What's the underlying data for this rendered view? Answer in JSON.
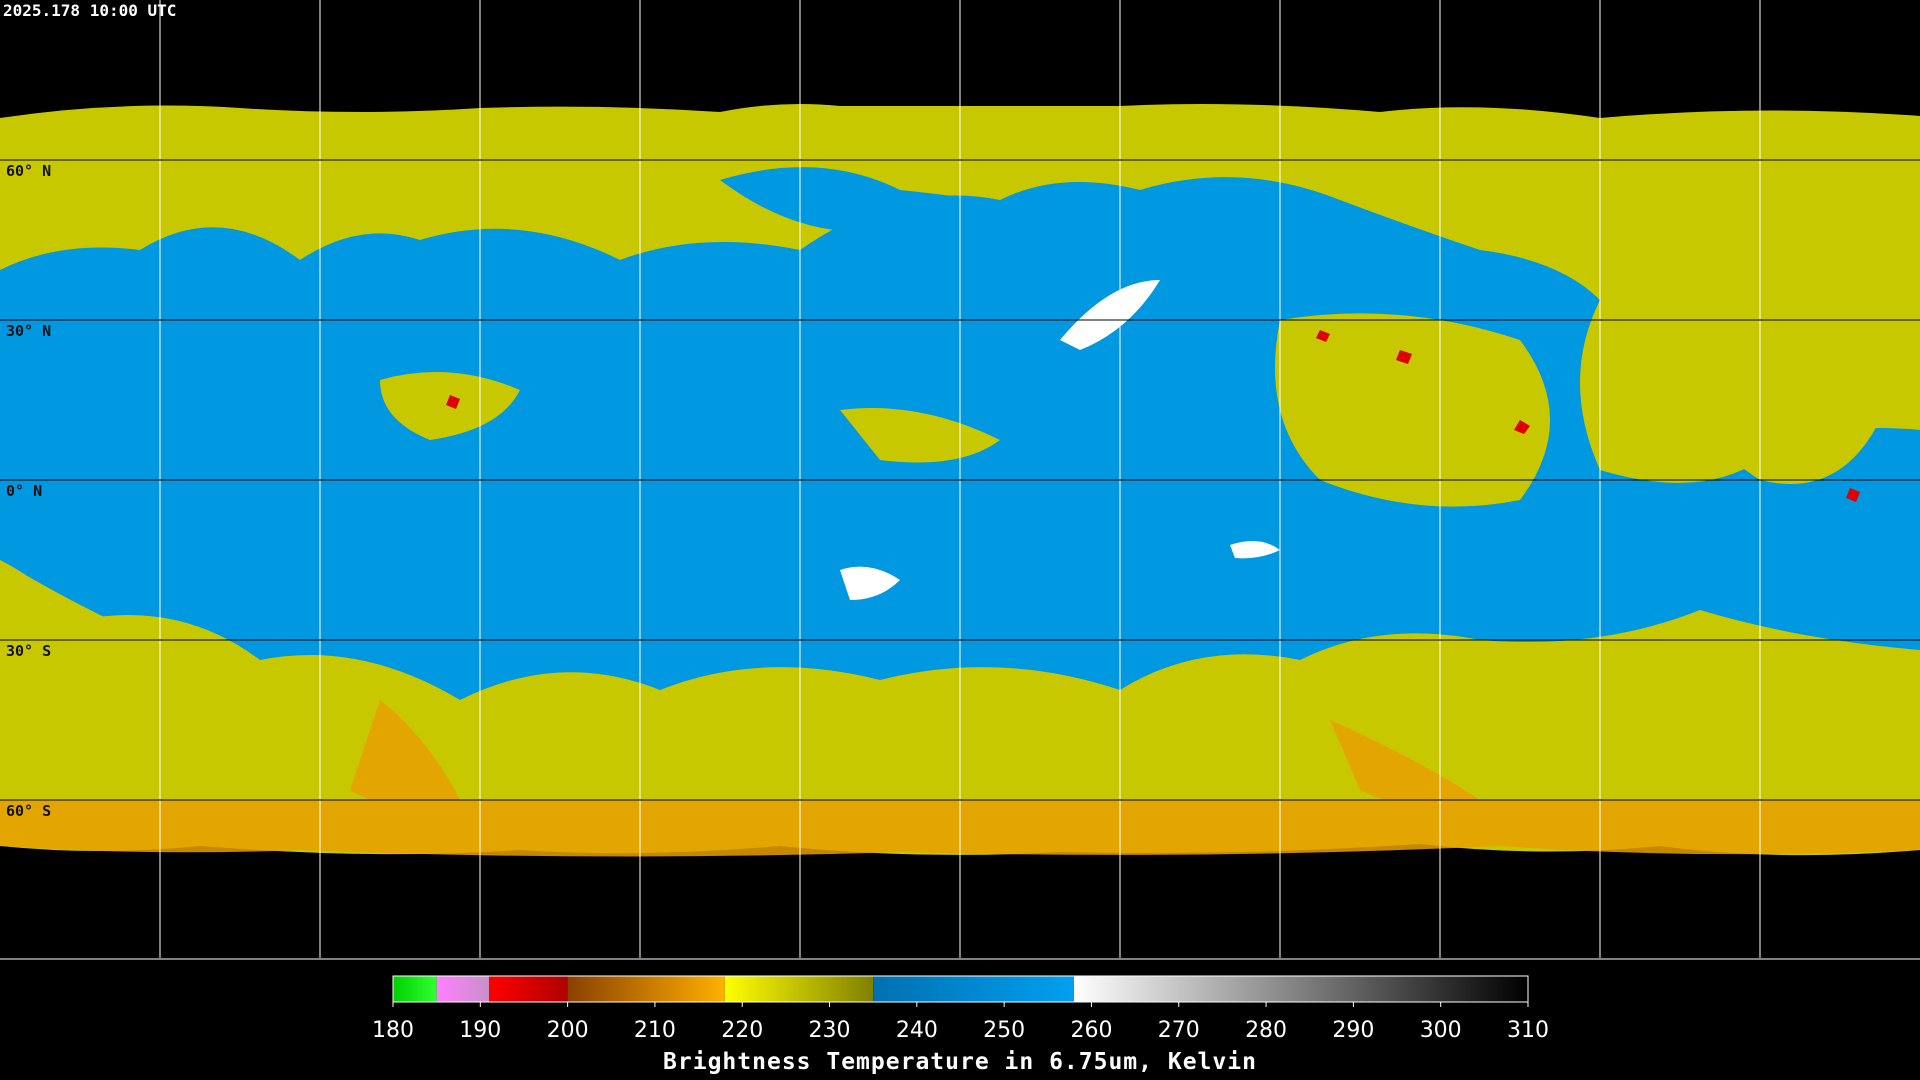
{
  "title": "2025.178 10:00 UTC",
  "lat_lines": [
    {
      "value": 60,
      "label": "60° N"
    },
    {
      "value": 30,
      "label": "30° N"
    },
    {
      "value": 0,
      "label": "0° N"
    },
    {
      "value": -30,
      "label": "30° S"
    },
    {
      "value": -60,
      "label": "60° S"
    }
  ],
  "colorbar": {
    "range": [
      180,
      310
    ],
    "ticks": [
      180,
      190,
      200,
      210,
      220,
      230,
      240,
      250,
      260,
      270,
      280,
      290,
      300,
      310
    ],
    "segments": [
      {
        "from": 180,
        "to": 185,
        "colors": [
          "#00d000",
          "#30ff30"
        ]
      },
      {
        "from": 185,
        "to": 191,
        "colors": [
          "#ff80ff",
          "#c890c8"
        ]
      },
      {
        "from": 191,
        "to": 200,
        "colors": [
          "#ff0000",
          "#b00000"
        ]
      },
      {
        "from": 200,
        "to": 218,
        "colors": [
          "#8a4000",
          "#ffb000"
        ]
      },
      {
        "from": 218,
        "to": 235,
        "colors": [
          "#ffff00",
          "#808000"
        ]
      },
      {
        "from": 235,
        "to": 258,
        "colors": [
          "#0070b0",
          "#00a0f0"
        ]
      },
      {
        "from": 258,
        "to": 310,
        "colors": [
          "#ffffff",
          "#000000"
        ]
      }
    ],
    "label": "Brightness Temperature in 6.75um, Kelvin"
  }
}
